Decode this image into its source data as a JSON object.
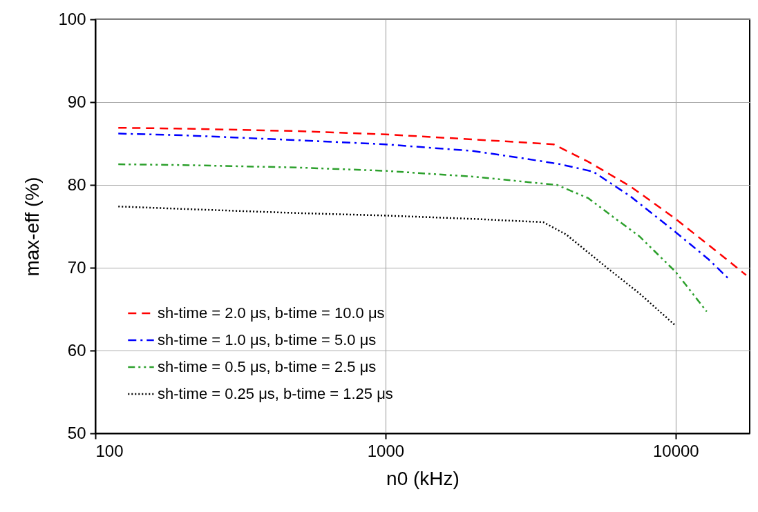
{
  "chart_data": {
    "type": "line",
    "xlabel": "n0 (kHz)",
    "ylabel": "max-eff (%)",
    "log": "x",
    "xlim": [
      100,
      18000
    ],
    "xticks": [
      100,
      1000,
      10000
    ],
    "ylim": [
      50,
      100
    ],
    "yticks": [
      50,
      60,
      70,
      80,
      90,
      100
    ],
    "grid": true,
    "legend": "bottom left",
    "series": [
      {
        "name": "sh-time = 2.0 μs,   b-time = 10.0 μs",
        "color": "#ff0000",
        "line_style": "dashed",
        "x": [
          120,
          200,
          500,
          1000,
          2000,
          3800,
          5000,
          7000,
          10000,
          15000,
          17500
        ],
        "values": [
          86.9,
          86.8,
          86.5,
          86.1,
          85.5,
          84.9,
          82.8,
          79.8,
          75.9,
          71.0,
          69.1
        ]
      },
      {
        "name": "sh-time = 1.0 μs,   b-time =   5.0 μs",
        "color": "#0000ff",
        "line_style": "dashdot",
        "x": [
          120,
          200,
          500,
          1000,
          2000,
          3000,
          4000,
          5200,
          7000,
          10000,
          13000,
          15300
        ],
        "values": [
          86.2,
          86.0,
          85.4,
          84.9,
          84.1,
          83.2,
          82.5,
          81.6,
          78.6,
          74.3,
          71.0,
          68.6
        ]
      },
      {
        "name": "sh-time = 0.5 μs,   b-time =   2.5 μs",
        "color": "#2ca02c",
        "line_style": "dashdotdot",
        "x": [
          120,
          200,
          500,
          1000,
          2000,
          3900,
          5000,
          6000,
          7500,
          10000,
          12800
        ],
        "values": [
          82.5,
          82.4,
          82.1,
          81.7,
          81.0,
          80.0,
          78.4,
          76.3,
          73.8,
          69.5,
          64.7
        ]
      },
      {
        "name": "sh-time = 0.25 μs, b-time =   1.25 μs",
        "color": "#000000",
        "line_style": "dotted",
        "x": [
          120,
          200,
          500,
          1000,
          2000,
          3500,
          4200,
          5800,
          7500,
          10000
        ],
        "values": [
          77.4,
          77.1,
          76.6,
          76.3,
          75.9,
          75.5,
          74.0,
          70.0,
          66.9,
          63.0
        ]
      }
    ]
  }
}
